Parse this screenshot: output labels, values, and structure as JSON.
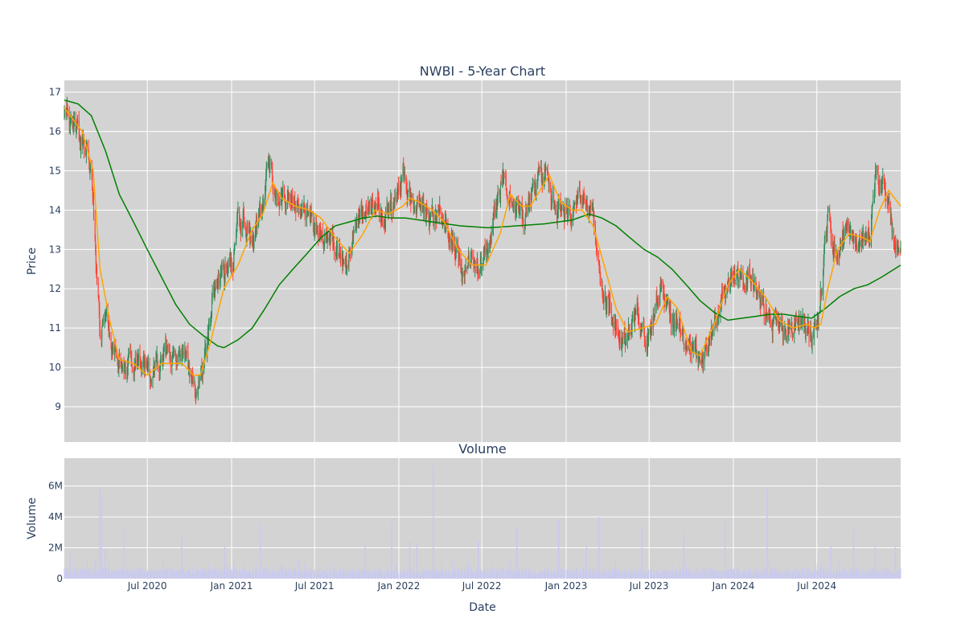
{
  "chart_data": [
    {
      "type": "candlestick",
      "title": "NWBI - 5-Year Chart",
      "ylabel": "Price",
      "ylim": [
        8.1,
        17.3
      ],
      "yticks": [
        9,
        10,
        11,
        12,
        13,
        14,
        15,
        16,
        17
      ],
      "grid": true,
      "background": "#d3d3d3",
      "colors": {
        "up": "#2e8b57",
        "down": "#ff4136",
        "ma_short": "#ffa500",
        "ma_long": "#008000"
      },
      "x_start": "2020-01-02",
      "x_end": "2024-12-31",
      "anchors": [
        [
          "2020-01-02",
          16.5
        ],
        [
          "2020-01-20",
          16.3
        ],
        [
          "2020-02-05",
          15.8
        ],
        [
          "2020-02-20",
          15.7
        ],
        [
          "2020-03-05",
          14.3
        ],
        [
          "2020-03-12",
          12.3
        ],
        [
          "2020-03-20",
          10.8
        ],
        [
          "2020-04-01",
          11.4
        ],
        [
          "2020-04-15",
          10.5
        ],
        [
          "2020-05-01",
          10.3
        ],
        [
          "2020-05-15",
          9.9
        ],
        [
          "2020-06-01",
          10.2
        ],
        [
          "2020-06-15",
          10.3
        ],
        [
          "2020-07-01",
          9.8
        ],
        [
          "2020-07-20",
          9.9
        ],
        [
          "2020-08-10",
          10.4
        ],
        [
          "2020-09-01",
          10.0
        ],
        [
          "2020-09-15",
          10.2
        ],
        [
          "2020-10-01",
          9.9
        ],
        [
          "2020-10-15",
          9.4
        ],
        [
          "2020-10-30",
          10.0
        ],
        [
          "2020-11-09",
          10.8
        ],
        [
          "2020-11-20",
          11.7
        ],
        [
          "2020-12-05",
          12.2
        ],
        [
          "2020-12-20",
          12.5
        ],
        [
          "2021-01-05",
          12.7
        ],
        [
          "2021-01-15",
          13.9
        ],
        [
          "2021-02-01",
          13.6
        ],
        [
          "2021-02-15",
          13.1
        ],
        [
          "2021-03-01",
          14.0
        ],
        [
          "2021-03-15",
          14.4
        ],
        [
          "2021-03-20",
          15.1
        ],
        [
          "2021-04-05",
          14.6
        ],
        [
          "2021-04-20",
          14.3
        ],
        [
          "2021-05-10",
          14.2
        ],
        [
          "2021-06-01",
          14.1
        ],
        [
          "2021-06-15",
          14.1
        ],
        [
          "2021-07-01",
          13.5
        ],
        [
          "2021-07-15",
          13.4
        ],
        [
          "2021-08-01",
          13.2
        ],
        [
          "2021-08-20",
          12.9
        ],
        [
          "2021-09-10",
          12.7
        ],
        [
          "2021-09-25",
          13.2
        ],
        [
          "2021-10-10",
          14.0
        ],
        [
          "2021-10-25",
          14.0
        ],
        [
          "2021-11-10",
          14.2
        ],
        [
          "2021-11-25",
          13.8
        ],
        [
          "2021-12-10",
          14.0
        ],
        [
          "2021-12-25",
          14.3
        ],
        [
          "2022-01-10",
          14.9
        ],
        [
          "2022-01-25",
          14.2
        ],
        [
          "2022-02-10",
          14.0
        ],
        [
          "2022-02-25",
          14.1
        ],
        [
          "2022-03-10",
          13.8
        ],
        [
          "2022-03-25",
          13.9
        ],
        [
          "2022-04-10",
          13.6
        ],
        [
          "2022-04-25",
          13.2
        ],
        [
          "2022-05-10",
          12.8
        ],
        [
          "2022-05-20",
          12.3
        ],
        [
          "2022-06-05",
          12.7
        ],
        [
          "2022-06-20",
          12.5
        ],
        [
          "2022-07-05",
          12.8
        ],
        [
          "2022-07-20",
          13.3
        ],
        [
          "2022-08-05",
          14.2
        ],
        [
          "2022-08-15",
          15.0
        ],
        [
          "2022-09-01",
          14.2
        ],
        [
          "2022-09-15",
          13.9
        ],
        [
          "2022-10-01",
          13.7
        ],
        [
          "2022-10-15",
          14.1
        ],
        [
          "2022-11-01",
          14.8
        ],
        [
          "2022-11-15",
          15.0
        ],
        [
          "2022-12-01",
          14.3
        ],
        [
          "2022-12-15",
          14.0
        ],
        [
          "2023-01-01",
          13.9
        ],
        [
          "2023-01-15",
          14.1
        ],
        [
          "2023-02-01",
          14.3
        ],
        [
          "2023-02-15",
          14.0
        ],
        [
          "2023-03-01",
          13.9
        ],
        [
          "2023-03-10",
          12.8
        ],
        [
          "2023-03-20",
          12.0
        ],
        [
          "2023-04-05",
          11.6
        ],
        [
          "2023-04-20",
          11.2
        ],
        [
          "2023-05-05",
          10.6
        ],
        [
          "2023-05-20",
          11.0
        ],
        [
          "2023-06-05",
          11.4
        ],
        [
          "2023-06-20",
          10.7
        ],
        [
          "2023-07-05",
          10.9
        ],
        [
          "2023-07-25",
          12.1
        ],
        [
          "2023-08-10",
          11.5
        ],
        [
          "2023-08-25",
          11.1
        ],
        [
          "2023-09-10",
          10.9
        ],
        [
          "2023-09-25",
          10.5
        ],
        [
          "2023-10-10",
          10.2
        ],
        [
          "2023-10-25",
          10.2
        ],
        [
          "2023-11-10",
          10.7
        ],
        [
          "2023-11-25",
          11.3
        ],
        [
          "2023-12-10",
          11.8
        ],
        [
          "2023-12-25",
          12.4
        ],
        [
          "2024-01-10",
          12.3
        ],
        [
          "2024-01-25",
          12.0
        ],
        [
          "2024-02-05",
          12.6
        ],
        [
          "2024-02-20",
          11.9
        ],
        [
          "2024-03-05",
          11.6
        ],
        [
          "2024-03-20",
          11.3
        ],
        [
          "2024-04-05",
          11.1
        ],
        [
          "2024-04-20",
          10.9
        ],
        [
          "2024-05-05",
          11.0
        ],
        [
          "2024-05-20",
          11.1
        ],
        [
          "2024-06-05",
          11.0
        ],
        [
          "2024-06-20",
          10.8
        ],
        [
          "2024-07-05",
          11.3
        ],
        [
          "2024-07-15",
          12.6
        ],
        [
          "2024-07-25",
          13.9
        ],
        [
          "2024-08-10",
          12.9
        ],
        [
          "2024-08-25",
          13.4
        ],
        [
          "2024-09-10",
          13.5
        ],
        [
          "2024-09-25",
          13.1
        ],
        [
          "2024-10-10",
          13.3
        ],
        [
          "2024-10-25",
          13.2
        ],
        [
          "2024-11-06",
          14.9
        ],
        [
          "2024-11-20",
          14.7
        ],
        [
          "2024-12-05",
          14.3
        ],
        [
          "2024-12-15",
          13.4
        ],
        [
          "2024-12-31",
          13.1
        ]
      ],
      "ma_short_points": [
        [
          "2020-01-02",
          16.6
        ],
        [
          "2020-02-10",
          16.0
        ],
        [
          "2020-03-05",
          15.0
        ],
        [
          "2020-03-20",
          12.5
        ],
        [
          "2020-04-10",
          11.2
        ],
        [
          "2020-05-01",
          10.2
        ],
        [
          "2020-06-01",
          10.1
        ],
        [
          "2020-07-01",
          9.8
        ],
        [
          "2020-08-01",
          10.1
        ],
        [
          "2020-09-15",
          10.1
        ],
        [
          "2020-10-10",
          9.8
        ],
        [
          "2020-10-25",
          9.8
        ],
        [
          "2020-11-15",
          10.6
        ],
        [
          "2020-12-15",
          12.0
        ],
        [
          "2021-01-15",
          12.6
        ],
        [
          "2021-02-15",
          13.5
        ],
        [
          "2021-03-10",
          13.9
        ],
        [
          "2021-04-01",
          14.7
        ],
        [
          "2021-04-20",
          14.3
        ],
        [
          "2021-05-20",
          14.1
        ],
        [
          "2021-06-20",
          14.0
        ],
        [
          "2021-07-15",
          13.8
        ],
        [
          "2021-08-15",
          13.3
        ],
        [
          "2021-09-15",
          12.9
        ],
        [
          "2021-10-15",
          13.4
        ],
        [
          "2021-11-10",
          14.0
        ],
        [
          "2021-12-10",
          13.9
        ],
        [
          "2022-01-10",
          14.1
        ],
        [
          "2022-01-25",
          14.3
        ],
        [
          "2022-02-15",
          14.2
        ],
        [
          "2022-03-15",
          14.0
        ],
        [
          "2022-04-10",
          13.7
        ],
        [
          "2022-05-10",
          13.0
        ],
        [
          "2022-06-10",
          12.6
        ],
        [
          "2022-07-10",
          12.6
        ],
        [
          "2022-08-10",
          13.4
        ],
        [
          "2022-09-01",
          14.4
        ],
        [
          "2022-09-25",
          14.1
        ],
        [
          "2022-10-15",
          14.1
        ],
        [
          "2022-11-10",
          14.6
        ],
        [
          "2022-11-25",
          14.9
        ],
        [
          "2022-12-20",
          14.2
        ],
        [
          "2023-01-15",
          14.0
        ],
        [
          "2023-02-05",
          14.0
        ],
        [
          "2023-03-01",
          13.6
        ],
        [
          "2023-03-25",
          12.6
        ],
        [
          "2023-04-20",
          11.5
        ],
        [
          "2023-05-15",
          10.9
        ],
        [
          "2023-06-15",
          11.0
        ],
        [
          "2023-07-15",
          11.1
        ],
        [
          "2023-08-10",
          11.8
        ],
        [
          "2023-09-01",
          11.5
        ],
        [
          "2023-10-01",
          10.4
        ],
        [
          "2023-10-20",
          10.3
        ],
        [
          "2023-11-20",
          11.1
        ],
        [
          "2023-12-20",
          12.1
        ],
        [
          "2024-01-15",
          12.5
        ],
        [
          "2024-02-10",
          12.2
        ],
        [
          "2024-03-10",
          11.8
        ],
        [
          "2024-04-10",
          11.2
        ],
        [
          "2024-05-10",
          11.0
        ],
        [
          "2024-06-10",
          11.1
        ],
        [
          "2024-06-25",
          11.0
        ],
        [
          "2024-07-10",
          11.1
        ],
        [
          "2024-07-25",
          12.0
        ],
        [
          "2024-08-15",
          13.0
        ],
        [
          "2024-09-10",
          13.4
        ],
        [
          "2024-10-10",
          13.3
        ],
        [
          "2024-10-25",
          13.2
        ],
        [
          "2024-11-15",
          14.0
        ],
        [
          "2024-12-05",
          14.5
        ],
        [
          "2024-12-31",
          14.1
        ]
      ],
      "ma_long_points": [
        [
          "2020-01-02",
          16.8
        ],
        [
          "2020-02-01",
          16.7
        ],
        [
          "2020-03-01",
          16.4
        ],
        [
          "2020-04-01",
          15.5
        ],
        [
          "2020-05-01",
          14.4
        ],
        [
          "2020-06-01",
          13.7
        ],
        [
          "2020-07-01",
          13.0
        ],
        [
          "2020-08-01",
          12.3
        ],
        [
          "2020-09-01",
          11.6
        ],
        [
          "2020-10-01",
          11.1
        ],
        [
          "2020-11-01",
          10.8
        ],
        [
          "2020-12-01",
          10.55
        ],
        [
          "2020-12-15",
          10.5
        ],
        [
          "2021-01-15",
          10.7
        ],
        [
          "2021-02-15",
          11.0
        ],
        [
          "2021-03-15",
          11.5
        ],
        [
          "2021-04-15",
          12.1
        ],
        [
          "2021-05-15",
          12.5
        ],
        [
          "2021-06-15",
          12.9
        ],
        [
          "2021-07-15",
          13.3
        ],
        [
          "2021-08-15",
          13.6
        ],
        [
          "2021-09-15",
          13.7
        ],
        [
          "2021-10-15",
          13.8
        ],
        [
          "2021-11-15",
          13.85
        ],
        [
          "2021-12-15",
          13.8
        ],
        [
          "2022-01-15",
          13.8
        ],
        [
          "2022-03-15",
          13.7
        ],
        [
          "2022-05-15",
          13.6
        ],
        [
          "2022-07-15",
          13.55
        ],
        [
          "2022-09-15",
          13.6
        ],
        [
          "2022-11-15",
          13.65
        ],
        [
          "2023-01-15",
          13.75
        ],
        [
          "2023-02-20",
          13.9
        ],
        [
          "2023-03-20",
          13.8
        ],
        [
          "2023-04-20",
          13.6
        ],
        [
          "2023-05-20",
          13.3
        ],
        [
          "2023-06-20",
          13.0
        ],
        [
          "2023-07-20",
          12.8
        ],
        [
          "2023-08-20",
          12.5
        ],
        [
          "2023-09-20",
          12.1
        ],
        [
          "2023-10-20",
          11.7
        ],
        [
          "2023-11-20",
          11.4
        ],
        [
          "2023-12-20",
          11.2
        ],
        [
          "2024-01-20",
          11.25
        ],
        [
          "2024-02-20",
          11.3
        ],
        [
          "2024-03-20",
          11.35
        ],
        [
          "2024-04-20",
          11.35
        ],
        [
          "2024-05-20",
          11.3
        ],
        [
          "2024-06-20",
          11.25
        ],
        [
          "2024-07-20",
          11.5
        ],
        [
          "2024-08-20",
          11.8
        ],
        [
          "2024-09-20",
          12.0
        ],
        [
          "2024-10-20",
          12.1
        ],
        [
          "2024-11-20",
          12.3
        ],
        [
          "2024-12-31",
          12.6
        ]
      ]
    },
    {
      "type": "bar",
      "title": "Volume",
      "xlabel": "Date",
      "ylabel": "Volume",
      "ylim": [
        0,
        7800000
      ],
      "yticks": [
        {
          "value": 0,
          "label": "0"
        },
        {
          "value": 2000000,
          "label": "2M"
        },
        {
          "value": 4000000,
          "label": "4M"
        },
        {
          "value": 6000000,
          "label": "6M"
        }
      ],
      "xticks": [
        {
          "date": "2020-07-01",
          "label": "Jul 2020"
        },
        {
          "date": "2021-01-01",
          "label": "Jan 2021"
        },
        {
          "date": "2021-07-01",
          "label": "Jul 2021"
        },
        {
          "date": "2022-01-01",
          "label": "Jan 2022"
        },
        {
          "date": "2022-07-01",
          "label": "Jul 2022"
        },
        {
          "date": "2023-01-01",
          "label": "Jan 2023"
        },
        {
          "date": "2023-07-01",
          "label": "Jul 2023"
        },
        {
          "date": "2024-01-01",
          "label": "Jan 2024"
        },
        {
          "date": "2024-07-01",
          "label": "Jul 2024"
        }
      ],
      "grid": true,
      "background": "#d3d3d3",
      "bar_color": "#c9c9f0",
      "spikes": [
        [
          "2020-01-15",
          1700000
        ],
        [
          "2020-03-10",
          1200000
        ],
        [
          "2020-03-20",
          5800000
        ],
        [
          "2020-03-23",
          5400000
        ],
        [
          "2020-04-01",
          1900000
        ],
        [
          "2020-05-10",
          3300000
        ],
        [
          "2020-09-15",
          2800000
        ],
        [
          "2020-12-18",
          2100000
        ],
        [
          "2021-03-05",
          3500000
        ],
        [
          "2021-05-28",
          1300000
        ],
        [
          "2021-10-20",
          2400000
        ],
        [
          "2021-12-17",
          3600000
        ],
        [
          "2022-01-24",
          2400000
        ],
        [
          "2022-02-10",
          2200000
        ],
        [
          "2022-03-18",
          7300000
        ],
        [
          "2022-06-24",
          2400000
        ],
        [
          "2022-09-16",
          3300000
        ],
        [
          "2022-12-16",
          3800000
        ],
        [
          "2023-02-15",
          2100000
        ],
        [
          "2023-03-13",
          4000000
        ],
        [
          "2023-06-16",
          3300000
        ],
        [
          "2023-09-15",
          2900000
        ],
        [
          "2023-12-15",
          3700000
        ],
        [
          "2024-03-15",
          5800000
        ],
        [
          "2024-08-01",
          2100000
        ],
        [
          "2024-09-20",
          3100000
        ],
        [
          "2024-11-06",
          2200000
        ],
        [
          "2024-12-20",
          2100000
        ]
      ]
    }
  ]
}
